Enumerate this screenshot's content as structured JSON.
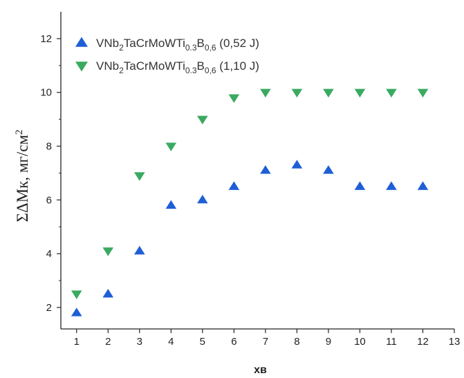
{
  "chart_data": {
    "type": "scatter",
    "xlabel": "хв",
    "ylabel": "ΣΔМк, мг/см",
    "ylabel_sup": "2",
    "xlim": [
      0.5,
      13
    ],
    "ylim": [
      1.2,
      13
    ],
    "x_ticks": [
      1,
      2,
      3,
      4,
      5,
      6,
      7,
      8,
      9,
      10,
      11,
      12,
      13
    ],
    "y_ticks": [
      2,
      4,
      6,
      8,
      10,
      12
    ],
    "legend_position": "top-left",
    "series": [
      {
        "legend_parts": [
          "VNb",
          "2",
          "TaCrMoWTi",
          "0.3",
          "B",
          "0,6",
          " (0,52 J)"
        ],
        "marker": "triangle-up",
        "color": "#1f5fd6",
        "x": [
          1,
          2,
          3,
          4,
          5,
          6,
          7,
          8,
          9,
          10,
          11,
          12
        ],
        "y": [
          1.8,
          2.5,
          4.1,
          5.8,
          6.0,
          6.5,
          7.1,
          7.3,
          7.1,
          6.5,
          6.5,
          6.5
        ]
      },
      {
        "legend_parts": [
          "VNb",
          "2",
          "TaCrMoWTi",
          "0.3",
          "B",
          "0,6",
          " (1,10 J)"
        ],
        "marker": "triangle-down",
        "color": "#3aaa60",
        "x": [
          1,
          2,
          3,
          4,
          5,
          6,
          7,
          8,
          9,
          10,
          11,
          12
        ],
        "y": [
          2.5,
          4.1,
          6.9,
          8.0,
          9.0,
          9.8,
          10.0,
          10.0,
          10.0,
          10.0,
          10.0,
          10.0
        ]
      }
    ]
  }
}
